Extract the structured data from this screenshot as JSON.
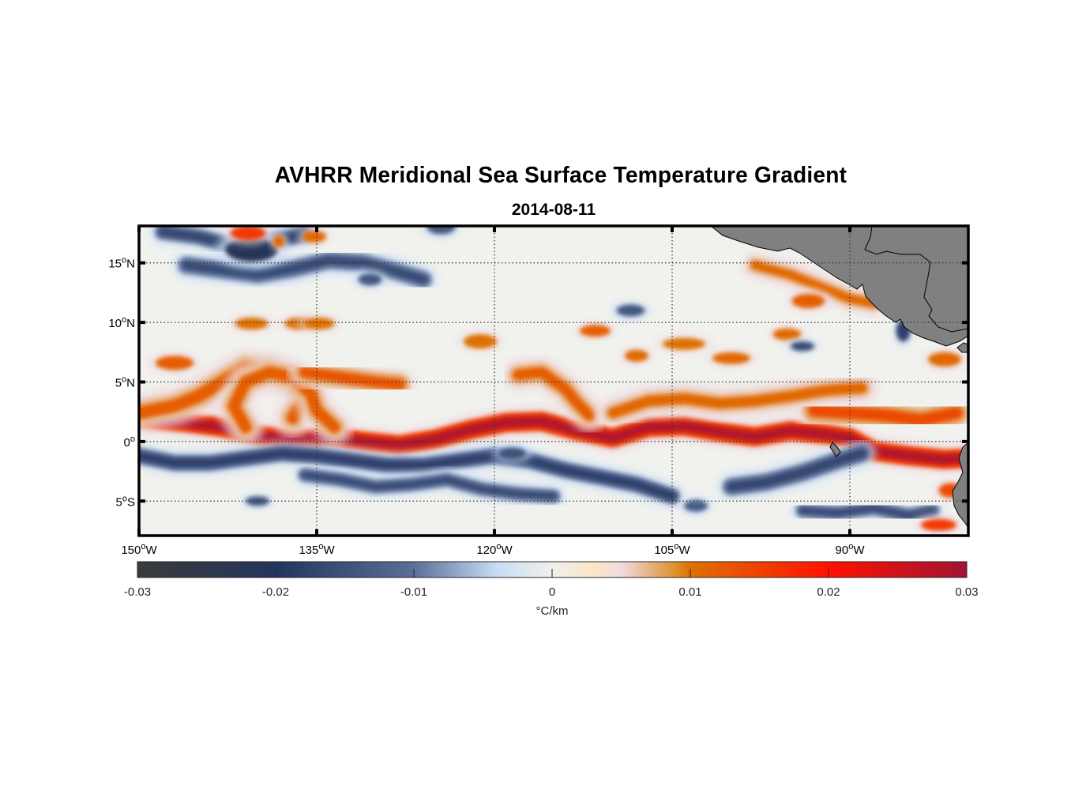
{
  "title": "AVHRR Meridional Sea Surface Temperature Gradient",
  "subtitle": "2014-08-11",
  "chart_data": {
    "type": "heatmap",
    "title": "AVHRR Meridional Sea Surface Temperature Gradient",
    "subtitle": "2014-08-11",
    "xlim": [
      -150,
      -80
    ],
    "ylim": [
      -7.9,
      18.1
    ],
    "grid": true,
    "x_ticks": [
      {
        "value": -150,
        "label": "150",
        "suffix": "W"
      },
      {
        "value": -135,
        "label": "135",
        "suffix": "W"
      },
      {
        "value": -120,
        "label": "120",
        "suffix": "W"
      },
      {
        "value": -105,
        "label": "105",
        "suffix": "W"
      },
      {
        "value": -90,
        "label": "90",
        "suffix": "W"
      }
    ],
    "y_ticks": [
      {
        "value": 15,
        "label": "15",
        "suffix": "N"
      },
      {
        "value": 10,
        "label": "10",
        "suffix": "N"
      },
      {
        "value": 5,
        "label": "5",
        "suffix": "N"
      },
      {
        "value": 0,
        "label": "0",
        "suffix": ""
      },
      {
        "value": -5,
        "label": "5",
        "suffix": "S"
      }
    ],
    "degree_symbol": "o",
    "colorbar": {
      "range": [
        -0.03,
        0.03
      ],
      "ticks": [
        "-0.03",
        "-0.02",
        "-0.01",
        "0",
        "0.01",
        "0.02",
        "0.03"
      ],
      "tick_values": [
        -0.03,
        -0.02,
        -0.01,
        0,
        0.01,
        0.02,
        0.03
      ],
      "label": "°C/km",
      "colors": [
        {
          "v": -0.03,
          "c": "#3a3a3c"
        },
        {
          "v": -0.02,
          "c": "#23355e"
        },
        {
          "v": -0.01,
          "c": "#5b6e98"
        },
        {
          "v": -0.004,
          "c": "#c8dcf4"
        },
        {
          "v": 0,
          "c": "#f0f0ec"
        },
        {
          "v": 0.003,
          "c": "#fbe6c8"
        },
        {
          "v": 0.005,
          "c": "#efdbe0"
        },
        {
          "v": 0.009,
          "c": "#dd8f28"
        },
        {
          "v": 0.01,
          "c": "#de7000"
        },
        {
          "v": 0.02,
          "c": "#ff1100"
        },
        {
          "v": 0.03,
          "c": "#a01433"
        }
      ]
    },
    "land_color": "#808080",
    "background_value": 0,
    "features": [
      {
        "kind": "band",
        "value": 0.028,
        "width": 1.1,
        "points": [
          [
            -150,
            2.0
          ],
          [
            -146,
            1.6
          ],
          [
            -143,
            1.2
          ],
          [
            -140,
            0.5
          ],
          [
            -137,
            0.2
          ],
          [
            -134,
            0.4
          ],
          [
            -131,
            0.0
          ],
          [
            -128,
            -0.3
          ],
          [
            -125,
            0.2
          ],
          [
            -122,
            1.0
          ],
          [
            -119,
            1.6
          ],
          [
            -116,
            1.7
          ],
          [
            -113,
            0.9
          ],
          [
            -110,
            0.3
          ],
          [
            -107,
            1.2
          ],
          [
            -104,
            1.3
          ],
          [
            -101,
            0.8
          ],
          [
            -98,
            0.4
          ],
          [
            -95,
            0.9
          ],
          [
            -92,
            0.6
          ],
          [
            -90,
            0.3
          ],
          [
            -88,
            -0.8
          ],
          [
            -85,
            -1.2
          ],
          [
            -82,
            -1.5
          ],
          [
            -80,
            -1.4
          ]
        ]
      },
      {
        "kind": "band",
        "value": 0.012,
        "width": 1.4,
        "points": [
          [
            -150,
            2.4
          ],
          [
            -147,
            3.0
          ],
          [
            -145,
            3.8
          ],
          [
            -143,
            5.0
          ],
          [
            -141,
            6.2
          ],
          [
            -139,
            6.0
          ],
          [
            -137,
            5.0
          ],
          [
            -136,
            3.6
          ],
          [
            -137,
            2.0
          ]
        ]
      },
      {
        "kind": "band",
        "value": 0.012,
        "width": 1.3,
        "points": [
          [
            -141,
            1.2
          ],
          [
            -142,
            3.0
          ],
          [
            -141,
            5.0
          ],
          [
            -139,
            5.8
          ],
          [
            -137,
            5.4
          ],
          [
            -135.5,
            4.0
          ],
          [
            -135,
            2.6
          ],
          [
            -133.5,
            1.2
          ]
        ]
      },
      {
        "kind": "band",
        "value": 0.013,
        "width": 1.2,
        "points": [
          [
            -136,
            5.8
          ],
          [
            -133,
            5.4
          ],
          [
            -130,
            5.0
          ],
          [
            -128,
            4.8
          ]
        ]
      },
      {
        "kind": "band",
        "value": 0.012,
        "width": 1.2,
        "points": [
          [
            -118,
            5.6
          ],
          [
            -116,
            5.8
          ],
          [
            -114,
            4.4
          ],
          [
            -113,
            3.2
          ],
          [
            -112,
            2.2
          ]
        ]
      },
      {
        "kind": "band",
        "value": 0.011,
        "width": 1.2,
        "points": [
          [
            -110,
            2.4
          ],
          [
            -107,
            3.4
          ],
          [
            -104,
            3.6
          ],
          [
            -101,
            3.2
          ],
          [
            -98,
            3.4
          ],
          [
            -95,
            3.8
          ],
          [
            -92,
            4.3
          ],
          [
            -89,
            4.5
          ]
        ]
      },
      {
        "kind": "band",
        "value": 0.014,
        "width": 1.3,
        "points": [
          [
            -93,
            2.6
          ],
          [
            -90,
            2.4
          ],
          [
            -87,
            2.2
          ],
          [
            -84,
            1.8
          ],
          [
            -81,
            2.4
          ]
        ]
      },
      {
        "kind": "band",
        "value": 0.011,
        "width": 1.0,
        "points": [
          [
            -98,
            14.8
          ],
          [
            -95,
            14.0
          ],
          [
            -92,
            12.8
          ],
          [
            -90,
            12.0
          ],
          [
            -88,
            11.6
          ]
        ]
      },
      {
        "kind": "band",
        "value": -0.018,
        "width": 0.9,
        "points": [
          [
            -150,
            -1.2
          ],
          [
            -147,
            -1.8
          ],
          [
            -144,
            -1.8
          ],
          [
            -141,
            -1.4
          ],
          [
            -138,
            -1.0
          ],
          [
            -135,
            -1.2
          ],
          [
            -132,
            -1.6
          ],
          [
            -129,
            -2.0
          ],
          [
            -126,
            -2.0
          ],
          [
            -123,
            -1.6
          ],
          [
            -120,
            -1.2
          ],
          [
            -117,
            -1.6
          ],
          [
            -114,
            -2.4
          ],
          [
            -111,
            -3.0
          ],
          [
            -108,
            -3.6
          ],
          [
            -105,
            -4.6
          ]
        ]
      },
      {
        "kind": "band",
        "value": -0.016,
        "width": 0.8,
        "points": [
          [
            -136,
            -2.8
          ],
          [
            -133,
            -3.2
          ],
          [
            -130,
            -3.8
          ],
          [
            -127,
            -3.6
          ],
          [
            -124,
            -3.2
          ],
          [
            -121,
            -4.0
          ],
          [
            -118,
            -4.4
          ],
          [
            -115,
            -4.6
          ]
        ]
      },
      {
        "kind": "band",
        "value": -0.017,
        "width": 1.0,
        "points": [
          [
            -100,
            -3.8
          ],
          [
            -97,
            -3.4
          ],
          [
            -94,
            -2.6
          ],
          [
            -91,
            -1.6
          ],
          [
            -89,
            -1.0
          ]
        ]
      },
      {
        "kind": "band",
        "value": -0.016,
        "width": 0.8,
        "points": [
          [
            -94,
            -5.8
          ],
          [
            -91,
            -6.0
          ],
          [
            -88,
            -5.6
          ],
          [
            -85,
            -6.2
          ],
          [
            -83,
            -5.8
          ]
        ]
      },
      {
        "kind": "band",
        "value": -0.016,
        "width": 1.0,
        "points": [
          [
            -146,
            14.8
          ],
          [
            -143,
            14.4
          ],
          [
            -140,
            14.0
          ],
          [
            -137,
            14.5
          ],
          [
            -134,
            15.2
          ],
          [
            -131,
            15.0
          ],
          [
            -128,
            14.2
          ],
          [
            -126,
            13.6
          ]
        ]
      },
      {
        "kind": "band",
        "value": -0.017,
        "width": 0.9,
        "points": [
          [
            -148,
            17.6
          ],
          [
            -145,
            17.2
          ],
          [
            -142,
            16.4
          ],
          [
            -139,
            16.8
          ],
          [
            -136,
            17.4
          ]
        ]
      },
      {
        "kind": "blob",
        "value": -0.022,
        "lon": -140.5,
        "lat": 16.1,
        "rx": 2.2,
        "ry": 1.0
      },
      {
        "kind": "blob",
        "value": 0.016,
        "lon": -140.8,
        "lat": 17.5,
        "rx": 1.5,
        "ry": 0.6
      },
      {
        "kind": "blob",
        "value": 0.011,
        "lon": -138.2,
        "lat": 16.8,
        "rx": 0.5,
        "ry": 0.5
      },
      {
        "kind": "blob",
        "value": 0.011,
        "lon": -135.2,
        "lat": 17.2,
        "rx": 1.0,
        "ry": 0.5
      },
      {
        "kind": "blob",
        "value": 0.01,
        "lon": -140.5,
        "lat": 9.9,
        "rx": 1.4,
        "ry": 0.5
      },
      {
        "kind": "blob",
        "value": 0.01,
        "lon": -136.5,
        "lat": 9.9,
        "rx": 1.2,
        "ry": 0.5
      },
      {
        "kind": "blob",
        "value": 0.01,
        "lon": -134.8,
        "lat": 9.9,
        "rx": 1.3,
        "ry": 0.5
      },
      {
        "kind": "blob",
        "value": 0.01,
        "lon": -121.2,
        "lat": 8.4,
        "rx": 1.4,
        "ry": 0.6
      },
      {
        "kind": "blob",
        "value": 0.012,
        "lon": -111.5,
        "lat": 9.3,
        "rx": 1.3,
        "ry": 0.5
      },
      {
        "kind": "blob",
        "value": 0.01,
        "lon": -104,
        "lat": 8.2,
        "rx": 1.8,
        "ry": 0.5
      },
      {
        "kind": "blob",
        "value": 0.011,
        "lon": -95.3,
        "lat": 9.0,
        "rx": 1.2,
        "ry": 0.5
      },
      {
        "kind": "blob",
        "value": 0.011,
        "lon": -108,
        "lat": 7.2,
        "rx": 1.0,
        "ry": 0.5
      },
      {
        "kind": "blob",
        "value": 0.011,
        "lon": -100,
        "lat": 7.0,
        "rx": 1.6,
        "ry": 0.5
      },
      {
        "kind": "blob",
        "value": 0.012,
        "lon": -93.5,
        "lat": 11.8,
        "rx": 1.4,
        "ry": 0.6
      },
      {
        "kind": "blob",
        "value": 0.011,
        "lon": -82,
        "lat": 6.9,
        "rx": 1.4,
        "ry": 0.6
      },
      {
        "kind": "blob",
        "value": 0.012,
        "lon": -147,
        "lat": 6.6,
        "rx": 1.6,
        "ry": 0.6
      },
      {
        "kind": "blob",
        "value": 0.014,
        "lon": -81.5,
        "lat": -4.1,
        "rx": 1.0,
        "ry": 0.6
      },
      {
        "kind": "blob",
        "value": 0.016,
        "lon": -82.5,
        "lat": -7.0,
        "rx": 1.5,
        "ry": 0.5
      },
      {
        "kind": "blob",
        "value": -0.018,
        "lon": -85.5,
        "lat": 9.3,
        "rx": 0.6,
        "ry": 0.9
      },
      {
        "kind": "blob",
        "value": -0.016,
        "lon": -94,
        "lat": 8.0,
        "rx": 1.0,
        "ry": 0.4
      },
      {
        "kind": "blob",
        "value": -0.015,
        "lon": -118.5,
        "lat": -1.0,
        "rx": 1.2,
        "ry": 0.5
      },
      {
        "kind": "blob",
        "value": -0.015,
        "lon": -140,
        "lat": -5.0,
        "rx": 1.0,
        "ry": 0.4
      },
      {
        "kind": "blob",
        "value": -0.014,
        "lon": -124.5,
        "lat": 18.0,
        "rx": 1.2,
        "ry": 0.6
      },
      {
        "kind": "blob",
        "value": -0.014,
        "lon": -130.5,
        "lat": 13.6,
        "rx": 1.0,
        "ry": 0.5
      },
      {
        "kind": "blob",
        "value": -0.014,
        "lon": -108.5,
        "lat": 11.0,
        "rx": 1.2,
        "ry": 0.5
      },
      {
        "kind": "blob",
        "value": -0.013,
        "lon": -84.5,
        "lat": 11.5,
        "rx": 1.3,
        "ry": 0.5
      },
      {
        "kind": "blob",
        "value": -0.013,
        "lon": -103,
        "lat": -5.4,
        "rx": 1.0,
        "ry": 0.5
      }
    ]
  }
}
